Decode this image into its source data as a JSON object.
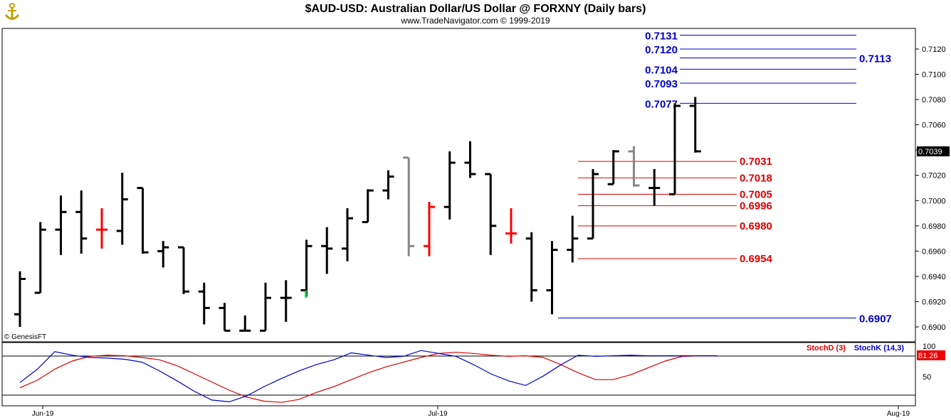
{
  "header": {
    "title": "$AUD-USD:  Australian Dollar/US Dollar @ FORXNY  (Daily bars)",
    "subtitle": "www.TradeNavigator.com © 1999-2019",
    "watermark": "© GenesisFT"
  },
  "chart_data": [
    {
      "type": "ohlc",
      "ylim": [
        0.6895,
        0.713
      ],
      "yticks": [
        "0.7120",
        "0.7100",
        "0.7080",
        "0.7060",
        "0.7040",
        "0.7020",
        "0.7000",
        "0.6980",
        "0.6960",
        "0.6940",
        "0.6920",
        "0.6900"
      ],
      "xticks": [
        "Jun-19",
        "Jul-19",
        "Aug-19"
      ],
      "last_price": "0.7039",
      "bars": [
        {
          "o": 0.691,
          "h": 0.6944,
          "l": 0.69,
          "c": 0.6938,
          "color": "#000000"
        },
        {
          "o": 0.6927,
          "h": 0.6983,
          "l": 0.6927,
          "c": 0.6977,
          "color": "#000000"
        },
        {
          "o": 0.6977,
          "h": 0.7004,
          "l": 0.6957,
          "c": 0.6991,
          "color": "#000000"
        },
        {
          "o": 0.6991,
          "h": 0.7008,
          "l": 0.6958,
          "c": 0.697,
          "color": "#000000"
        },
        {
          "o": 0.6977,
          "h": 0.6994,
          "l": 0.6962,
          "c": 0.6977,
          "color": "#ff0000"
        },
        {
          "o": 0.6976,
          "h": 0.7022,
          "l": 0.6965,
          "c": 0.7001,
          "color": "#000000"
        },
        {
          "o": 0.701,
          "h": 0.701,
          "l": 0.6958,
          "c": 0.6959,
          "color": "#000000"
        },
        {
          "o": 0.696,
          "h": 0.6968,
          "l": 0.6947,
          "c": 0.6963,
          "color": "#000000"
        },
        {
          "o": 0.6963,
          "h": 0.6963,
          "l": 0.6926,
          "c": 0.6928,
          "color": "#000000"
        },
        {
          "o": 0.6928,
          "h": 0.6935,
          "l": 0.6902,
          "c": 0.6915,
          "color": "#000000"
        },
        {
          "o": 0.6915,
          "h": 0.6919,
          "l": 0.6897,
          "c": 0.6897,
          "color": "#000000"
        },
        {
          "o": 0.6897,
          "h": 0.6909,
          "l": 0.6897,
          "c": 0.6897,
          "color": "#000000"
        },
        {
          "o": 0.6897,
          "h": 0.6935,
          "l": 0.6897,
          "c": 0.6923,
          "color": "#000000"
        },
        {
          "o": 0.6923,
          "h": 0.6937,
          "l": 0.6904,
          "c": 0.6923,
          "color": "#000000"
        },
        {
          "o": 0.6929,
          "h": 0.6969,
          "l": 0.6924,
          "c": 0.6964,
          "color": "#000000"
        },
        {
          "o": 0.6964,
          "h": 0.6979,
          "l": 0.6942,
          "c": 0.6962,
          "color": "#000000"
        },
        {
          "o": 0.6962,
          "h": 0.6994,
          "l": 0.6952,
          "c": 0.6986,
          "color": "#000000"
        },
        {
          "o": 0.6983,
          "h": 0.7009,
          "l": 0.6983,
          "c": 0.7008,
          "color": "#000000"
        },
        {
          "o": 0.7008,
          "h": 0.7024,
          "l": 0.7001,
          "c": 0.7019,
          "color": "#000000"
        },
        {
          "o": 0.7034,
          "h": 0.7034,
          "l": 0.6956,
          "c": 0.6964,
          "color": "#888888"
        },
        {
          "o": 0.6964,
          "h": 0.6999,
          "l": 0.6956,
          "c": 0.6995,
          "color": "#ff0000"
        },
        {
          "o": 0.6995,
          "h": 0.7039,
          "l": 0.6985,
          "c": 0.703,
          "color": "#000000"
        },
        {
          "o": 0.703,
          "h": 0.7047,
          "l": 0.7018,
          "c": 0.7021,
          "color": "#000000"
        },
        {
          "o": 0.7021,
          "h": 0.7021,
          "l": 0.6957,
          "c": 0.698,
          "color": "#000000"
        },
        {
          "o": 0.6974,
          "h": 0.6994,
          "l": 0.6966,
          "c": 0.6974,
          "color": "#ff0000"
        },
        {
          "o": 0.697,
          "h": 0.6975,
          "l": 0.692,
          "c": 0.6929,
          "color": "#000000"
        },
        {
          "o": 0.6929,
          "h": 0.6968,
          "l": 0.691,
          "c": 0.6961,
          "color": "#000000"
        },
        {
          "o": 0.6961,
          "h": 0.6988,
          "l": 0.6951,
          "c": 0.697,
          "color": "#000000"
        },
        {
          "o": 0.697,
          "h": 0.7025,
          "l": 0.697,
          "c": 0.7021,
          "color": "#000000"
        },
        {
          "o": 0.7013,
          "h": 0.704,
          "l": 0.7013,
          "c": 0.7039,
          "color": "#000000"
        },
        {
          "o": 0.7039,
          "h": 0.7043,
          "l": 0.7011,
          "c": 0.7012,
          "color": "#888888"
        },
        {
          "o": 0.701,
          "h": 0.7025,
          "l": 0.6996,
          "c": 0.701,
          "color": "#000000"
        },
        {
          "o": 0.7005,
          "h": 0.7077,
          "l": 0.7005,
          "c": 0.7075,
          "color": "#000000"
        },
        {
          "o": 0.7075,
          "h": 0.7082,
          "l": 0.7038,
          "c": 0.7039,
          "color": "#000000"
        }
      ],
      "accent_tick": {
        "bar": 13,
        "price": 0.6926,
        "color": "#00cc44"
      }
    },
    {
      "type": "levels",
      "resistance": {
        "color": "#0000cc",
        "values": [
          {
            "label": "0.7131",
            "value": 0.7131,
            "side": "left"
          },
          {
            "label": "0.7120",
            "value": 0.712,
            "side": "left"
          },
          {
            "label": "0.7113",
            "value": 0.7113,
            "side": "right"
          },
          {
            "label": "0.7104",
            "value": 0.7104,
            "side": "left"
          },
          {
            "label": "0.7093",
            "value": 0.7093,
            "side": "left"
          },
          {
            "label": "0.7077",
            "value": 0.7077,
            "side": "left"
          },
          {
            "label": "0.6907",
            "value": 0.6907,
            "side": "right"
          }
        ]
      },
      "support": {
        "color": "#dd0000",
        "values": [
          {
            "label": "0.7031",
            "value": 0.7031
          },
          {
            "label": "0.7018",
            "value": 0.7018
          },
          {
            "label": "0.7005",
            "value": 0.7005
          },
          {
            "label": "0.6996",
            "value": 0.6996
          },
          {
            "label": "0.6980",
            "value": 0.698
          },
          {
            "label": "0.6954",
            "value": 0.6954
          }
        ]
      }
    },
    {
      "type": "line",
      "ylim": [
        0,
        100
      ],
      "yticks": [
        "100",
        "50"
      ],
      "last_value": "81.26",
      "series": [
        {
          "name": "StochD (3)",
          "color": "#dd0000",
          "values": [
            26,
            39,
            58,
            72,
            80,
            82,
            81,
            78,
            74,
            64,
            50,
            36,
            22,
            10,
            3,
            1,
            6,
            18,
            28,
            40,
            52,
            62,
            70,
            78,
            85,
            87,
            85,
            82,
            80,
            81,
            78,
            66,
            52,
            40,
            40,
            48,
            60,
            72,
            80,
            81,
            81
          ]
        },
        {
          "name": "StochK (14,3)",
          "color": "#0000cc",
          "values": [
            35,
            58,
            88,
            82,
            78,
            77,
            75,
            70,
            55,
            38,
            20,
            5,
            2,
            12,
            28,
            42,
            55,
            66,
            74,
            86,
            82,
            78,
            80,
            90,
            85,
            80,
            66,
            50,
            38,
            30,
            46,
            65,
            82,
            80,
            81,
            82,
            81,
            81,
            81,
            81,
            81
          ]
        }
      ]
    }
  ]
}
